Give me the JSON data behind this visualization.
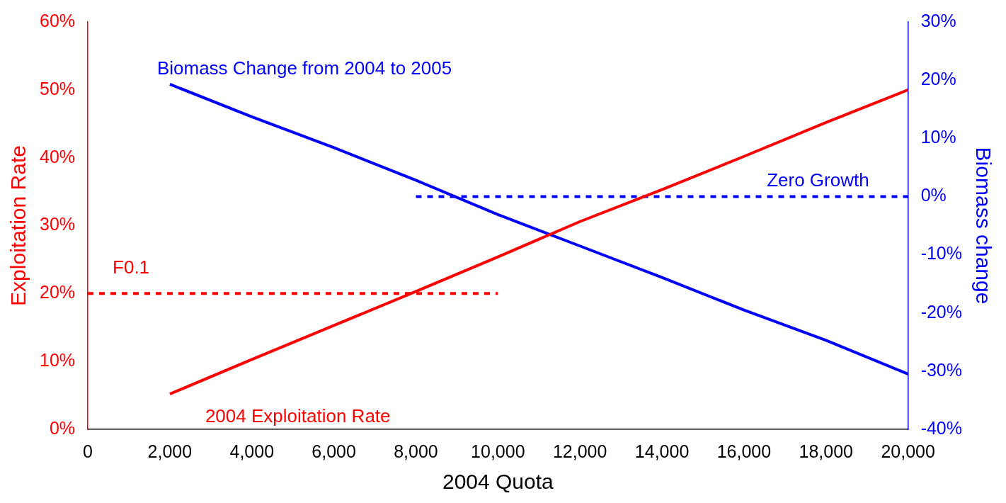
{
  "chart_data": {
    "type": "line",
    "xlabel": "2004 Quota",
    "ylabel": "Exploitation Rate",
    "y2label": "Biomass change",
    "xlim": [
      0,
      20000
    ],
    "xticks": [
      0,
      {
        "value": 2000,
        "label": "2,000"
      },
      {
        "value": 4000,
        "label": "4,000"
      },
      {
        "value": 6000,
        "label": "6,000"
      },
      {
        "value": 8000,
        "label": "8,000"
      },
      {
        "value": 10000,
        "label": "10,000"
      },
      {
        "value": 12000,
        "label": "12,000"
      },
      {
        "value": 14000,
        "label": "14,000"
      },
      {
        "value": 16000,
        "label": "16,000"
      },
      {
        "value": 18000,
        "label": "18,000"
      },
      {
        "value": 20000,
        "label": "20,000"
      }
    ],
    "ylim": [
      0,
      60
    ],
    "yticks": [
      {
        "value": 0,
        "label": "0%"
      },
      {
        "value": 10,
        "label": "10%"
      },
      {
        "value": 20,
        "label": "20%"
      },
      {
        "value": 30,
        "label": "30%"
      },
      {
        "value": 40,
        "label": "40%"
      },
      {
        "value": 50,
        "label": "50%"
      },
      {
        "value": 60,
        "label": "60%"
      }
    ],
    "y2lim": [
      -40,
      30
    ],
    "y2ticks": [
      {
        "value": -40,
        "label": "-40%"
      },
      {
        "value": -30,
        "label": "-30%"
      },
      {
        "value": -20,
        "label": "-20%"
      },
      {
        "value": -10,
        "label": "-10%"
      },
      {
        "value": 0,
        "label": "0%"
      },
      {
        "value": 10,
        "label": "10%"
      },
      {
        "value": 20,
        "label": "20%"
      },
      {
        "value": 30,
        "label": "30%"
      }
    ],
    "grid": false,
    "legend": false,
    "marker": "none",
    "series": [
      {
        "name": "2004 Exploitation Rate",
        "color": "#ff0000",
        "axis": "y",
        "line_style": "solid",
        "x": [
          2000,
          4000,
          6000,
          8000,
          10000,
          12000,
          14000,
          16000,
          18000,
          20000
        ],
        "values": [
          5.2,
          10.3,
          15.3,
          20.3,
          25.4,
          30.6,
          35.3,
          40.2,
          45.2,
          50
        ]
      },
      {
        "name": "Biomass Change from 2004 to 2005",
        "color": "#0000ff",
        "axis": "y2",
        "line_style": "solid",
        "x": [
          2000,
          4000,
          6000,
          8000,
          10000,
          12000,
          14000,
          16000,
          18000,
          20000
        ],
        "values": [
          19.3,
          13.7,
          8.4,
          2.8,
          -3.1,
          -8.5,
          -13.9,
          -19.5,
          -24.7,
          -30.5
        ]
      },
      {
        "name": "F0.1",
        "color": "#ff0000",
        "axis": "y",
        "line_style": "dashed",
        "x": [
          0,
          10000
        ],
        "values": [
          20,
          20
        ]
      },
      {
        "name": "Zero Growth",
        "color": "#0000ff",
        "axis": "y2",
        "line_style": "dashed",
        "x": [
          8000,
          20000
        ],
        "values": [
          0,
          0
        ]
      }
    ]
  }
}
